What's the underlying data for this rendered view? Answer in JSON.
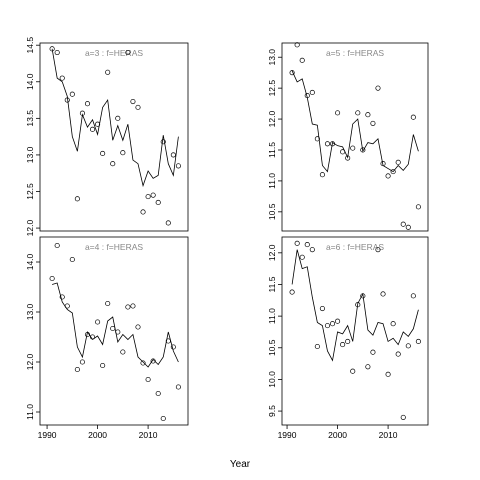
{
  "xlabel": "Year",
  "chart_data": [
    {
      "type": "scatter-line",
      "title": "a=3  :  f=HERAS",
      "x": [
        1991,
        1992,
        1993,
        1994,
        1995,
        1996,
        1997,
        1998,
        1999,
        2000,
        2001,
        2002,
        2003,
        2004,
        2005,
        2006,
        2007,
        2008,
        2009,
        2010,
        2011,
        2012,
        2013,
        2014,
        2015,
        2016
      ],
      "series": [
        {
          "style": "points",
          "color": "#000000",
          "values": [
            14.45,
            14.4,
            14.05,
            13.75,
            13.83,
            12.4,
            13.57,
            13.7,
            13.35,
            13.42,
            13.02,
            14.13,
            12.88,
            13.5,
            13.03,
            14.4,
            13.73,
            13.65,
            12.22,
            12.43,
            12.45,
            12.35,
            13.18,
            12.07,
            13.0,
            12.85
          ]
        },
        {
          "style": "line",
          "color": "#000000",
          "values": [
            14.45,
            14.05,
            14.0,
            13.8,
            13.25,
            13.05,
            13.55,
            13.38,
            13.48,
            13.28,
            13.65,
            13.75,
            13.2,
            13.4,
            13.2,
            13.42,
            12.93,
            12.88,
            12.58,
            12.78,
            12.68,
            12.72,
            13.27,
            12.88,
            12.72,
            13.25
          ]
        }
      ],
      "xlim": [
        1988.6,
        2017.9
      ],
      "ylim": [
        11.96,
        14.53
      ],
      "yticks": [
        {
          "value": 12,
          "label": "12.0"
        },
        12.5,
        {
          "value": 13,
          "label": "13.0"
        },
        13.5,
        {
          "value": 14,
          "label": "14.0"
        },
        14.5
      ]
    },
    {
      "type": "scatter-line",
      "title": "a=5  :  f=HERAS",
      "x": [
        1991,
        1992,
        1993,
        1994,
        1995,
        1996,
        1997,
        1998,
        1999,
        2000,
        2001,
        2002,
        2003,
        2004,
        2005,
        2006,
        2007,
        2008,
        2009,
        2010,
        2011,
        2012,
        2013,
        2014,
        2015,
        2016
      ],
      "series": [
        {
          "style": "points",
          "color": "#000000",
          "values": [
            12.75,
            13.2,
            12.95,
            12.38,
            12.43,
            11.68,
            11.1,
            11.6,
            11.6,
            12.1,
            11.47,
            11.37,
            11.53,
            12.1,
            11.5,
            12.07,
            11.93,
            12.5,
            11.28,
            11.08,
            11.15,
            11.3,
            10.3,
            10.25,
            12.03,
            10.58
          ]
        },
        {
          "style": "line",
          "color": "#000000",
          "values": [
            12.78,
            12.6,
            12.65,
            12.35,
            11.92,
            11.9,
            11.25,
            11.15,
            11.62,
            11.57,
            11.55,
            11.38,
            11.92,
            12.0,
            11.48,
            11.62,
            11.6,
            11.68,
            11.25,
            11.2,
            11.15,
            11.25,
            11.17,
            11.27,
            11.75,
            11.48
          ]
        }
      ],
      "xlim": [
        1989.0,
        2017.9
      ],
      "ylim": [
        10.19,
        13.23
      ],
      "yticks": [
        10.5,
        {
          "value": 11,
          "label": "11.0"
        },
        11.5,
        {
          "value": 12,
          "label": "12.0"
        },
        12.5,
        {
          "value": 13,
          "label": "13.0"
        }
      ]
    },
    {
      "type": "scatter-line",
      "title": "a=4  :  f=HERAS",
      "x": [
        1991,
        1992,
        1993,
        1994,
        1995,
        1996,
        1997,
        1998,
        1999,
        2000,
        2001,
        2002,
        2003,
        2004,
        2005,
        2006,
        2007,
        2008,
        2009,
        2010,
        2011,
        2012,
        2013,
        2014,
        2015,
        2016
      ],
      "series": [
        {
          "style": "points",
          "color": "#000000",
          "values": [
            13.67,
            14.33,
            13.3,
            13.12,
            14.05,
            11.85,
            12.0,
            12.55,
            12.5,
            12.8,
            11.93,
            13.17,
            12.67,
            12.6,
            12.2,
            13.1,
            13.12,
            12.7,
            11.98,
            11.65,
            12.02,
            11.37,
            10.87,
            12.42,
            12.3,
            11.5
          ]
        },
        {
          "style": "line",
          "color": "#000000",
          "values": [
            13.55,
            13.58,
            13.2,
            13.05,
            12.98,
            12.3,
            12.1,
            12.6,
            12.45,
            12.52,
            12.35,
            12.82,
            12.9,
            12.4,
            12.55,
            12.45,
            12.55,
            12.1,
            12.0,
            11.9,
            12.05,
            11.95,
            12.1,
            12.6,
            12.22,
            12.0
          ]
        }
      ],
      "xlim": [
        1988.6,
        2017.9
      ],
      "ylim": [
        10.74,
        14.5
      ],
      "xticks": [
        1990,
        2000,
        2010
      ],
      "yticks": [
        {
          "value": 11,
          "label": "11.0"
        },
        {
          "value": 12,
          "label": "12.0"
        },
        {
          "value": 13,
          "label": "13.0"
        },
        {
          "value": 14,
          "label": "14.0"
        }
      ]
    },
    {
      "type": "scatter-line",
      "title": "a=6  :  f=HERAS",
      "x": [
        1991,
        1992,
        1993,
        1994,
        1995,
        1996,
        1997,
        1998,
        1999,
        2000,
        2001,
        2002,
        2003,
        2004,
        2005,
        2006,
        2007,
        2008,
        2009,
        2010,
        2011,
        2012,
        2013,
        2014,
        2015,
        2016
      ],
      "series": [
        {
          "style": "points",
          "color": "#000000",
          "values": [
            11.38,
            12.15,
            11.93,
            12.13,
            12.05,
            10.52,
            11.12,
            10.85,
            10.88,
            10.92,
            10.55,
            10.6,
            10.13,
            11.18,
            11.32,
            10.2,
            10.43,
            12.05,
            11.35,
            10.08,
            10.88,
            10.4,
            9.4,
            10.53,
            11.32,
            10.6
          ]
        },
        {
          "style": "line",
          "color": "#000000",
          "values": [
            11.5,
            12.05,
            11.75,
            11.78,
            11.3,
            10.9,
            10.85,
            10.45,
            10.3,
            10.75,
            10.72,
            10.85,
            10.6,
            11.2,
            11.35,
            10.78,
            10.7,
            10.9,
            10.88,
            10.6,
            10.65,
            10.55,
            10.75,
            10.68,
            10.8,
            11.1
          ]
        }
      ],
      "xlim": [
        1989.0,
        2017.9
      ],
      "ylim": [
        9.28,
        12.25
      ],
      "xticks": [
        1990,
        2000,
        2010
      ],
      "yticks": [
        9.5,
        {
          "value": 10,
          "label": "10.0"
        },
        10.5,
        {
          "value": 11,
          "label": "11.0"
        },
        11.5,
        {
          "value": 12,
          "label": "12.0"
        }
      ]
    }
  ]
}
